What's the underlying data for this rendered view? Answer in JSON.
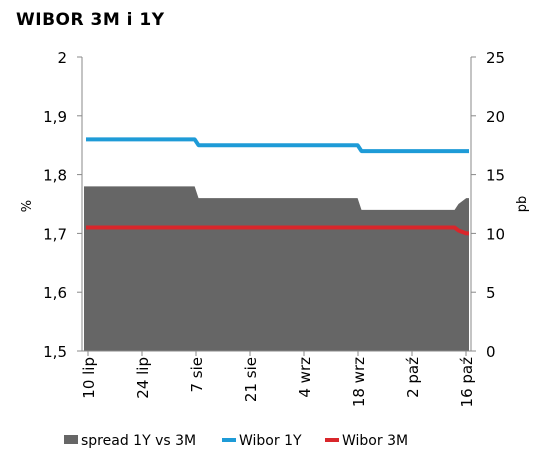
{
  "chart_data": {
    "type": "line",
    "title": "WIBOR 3M i 1Y",
    "ylabel_left": "%",
    "ylabel_right": "pb",
    "y_left_ticks": [
      "1,5",
      "1,6",
      "1,7",
      "1,8",
      "1,9",
      "2"
    ],
    "y_right_ticks": [
      "0",
      "5",
      "10",
      "15",
      "20",
      "25"
    ],
    "ylim_left": [
      1.5,
      2.0
    ],
    "ylim_right": [
      0,
      25
    ],
    "x_ticks": [
      "10 lip",
      "24 lip",
      "7 sie",
      "21 sie",
      "4 wrz",
      "18 wrz",
      "2 paź",
      "16 paź"
    ],
    "x": [
      "10 lip",
      "7 sie",
      "8 sie",
      "18 wrz",
      "19 wrz",
      "13 paź",
      "14 paź",
      "16 paź",
      "17 paź"
    ],
    "series": [
      {
        "name": "spread 1Y vs 3M",
        "type": "area",
        "axis": "right",
        "color": "#666666",
        "values": [
          14,
          14,
          13,
          13,
          12,
          12,
          12.5,
          13,
          13
        ]
      },
      {
        "name": "Wibor 1Y",
        "type": "line",
        "axis": "left",
        "color": "#1e9bd7",
        "values": [
          1.86,
          1.86,
          1.85,
          1.85,
          1.84,
          1.84,
          1.84,
          1.84,
          1.84
        ]
      },
      {
        "name": "Wibor 3M",
        "type": "line",
        "axis": "left",
        "color": "#d9262b",
        "values": [
          1.71,
          1.71,
          1.71,
          1.71,
          1.71,
          1.71,
          1.705,
          1.7,
          1.7
        ]
      }
    ],
    "legend_position": "bottom",
    "grid": false
  }
}
